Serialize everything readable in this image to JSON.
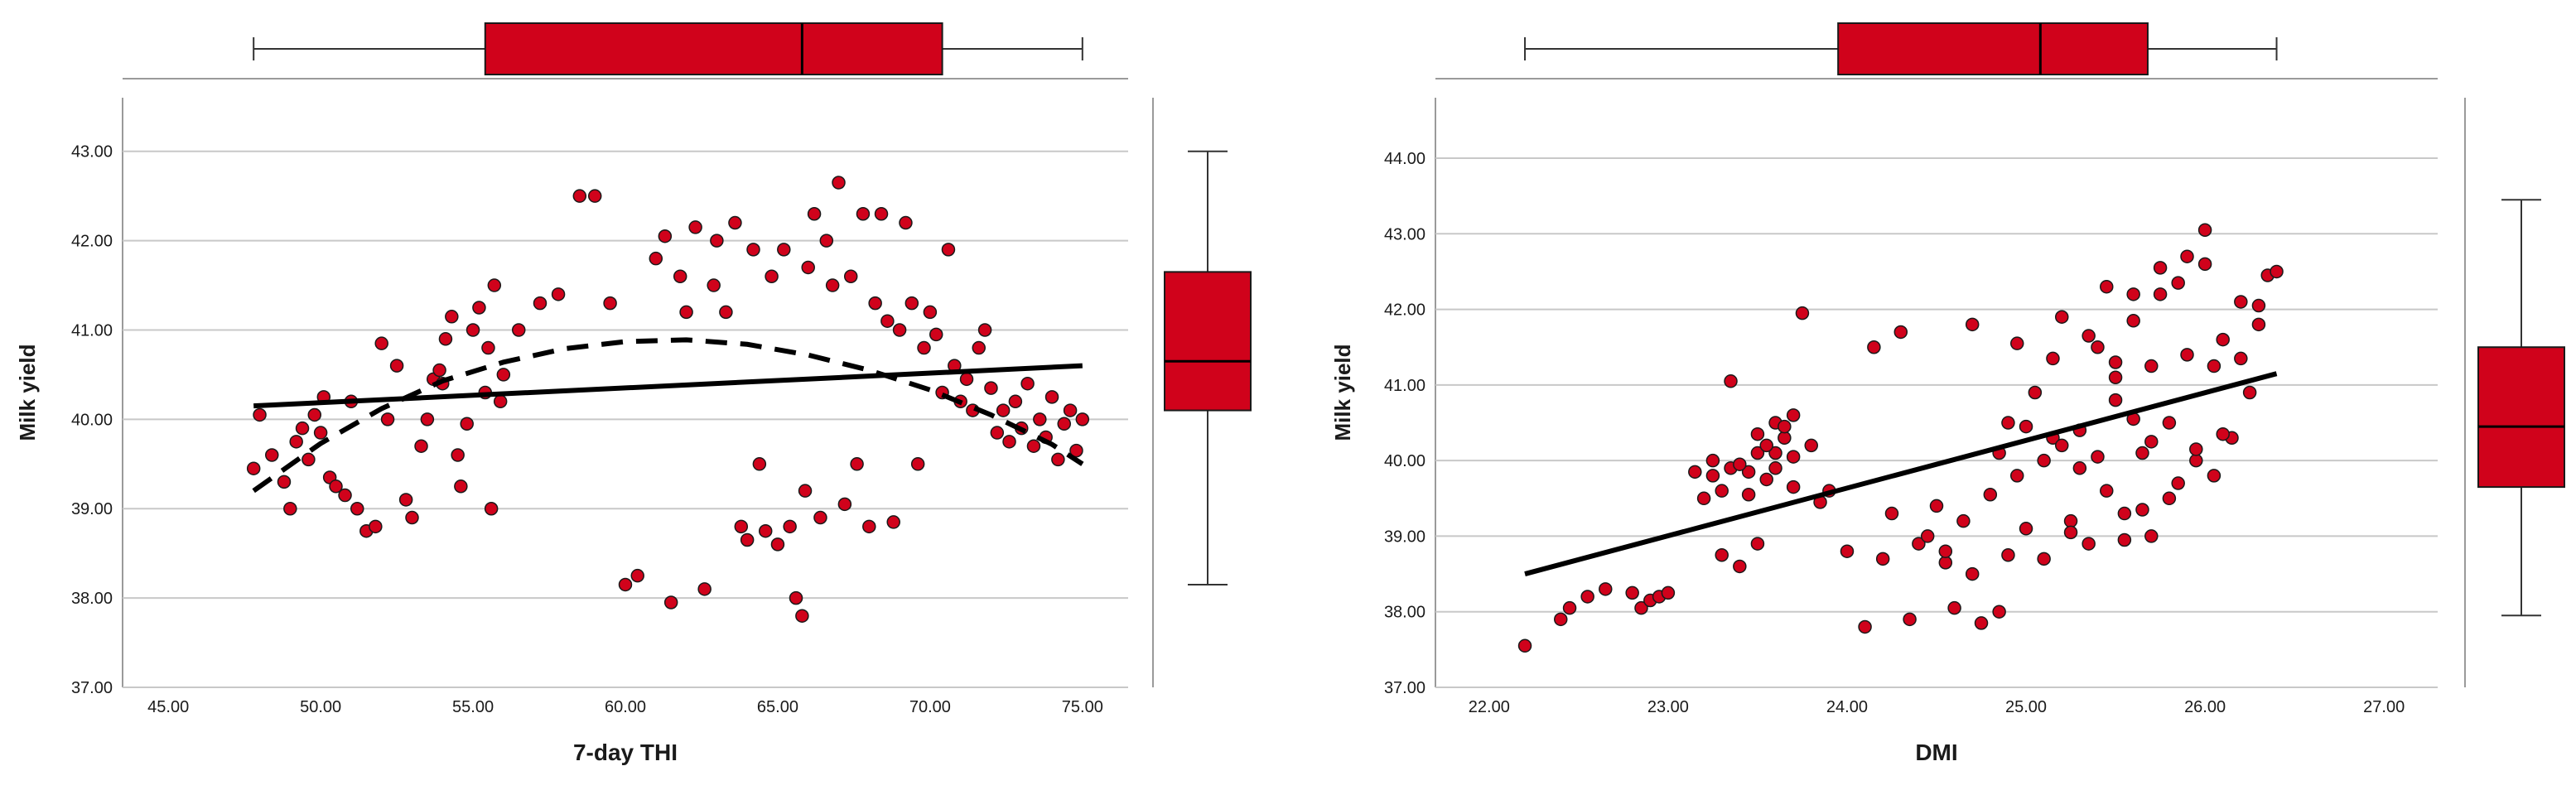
{
  "chart_data": [
    {
      "type": "scatter",
      "title": "",
      "xlabel": "7-day THI",
      "ylabel": "Milk yield",
      "xlim": [
        43.5,
        76.5
      ],
      "ylim": [
        37.0,
        43.6
      ],
      "x_ticks": [
        "45.00",
        "50.00",
        "55.00",
        "60.00",
        "65.00",
        "70.00",
        "75.00"
      ],
      "y_ticks": [
        "37.00",
        "38.00",
        "39.00",
        "40.00",
        "41.00",
        "42.00",
        "43.00"
      ],
      "grid": "horizontal",
      "colors": {
        "points": "#d0021b",
        "box": "#d0021b",
        "line": "#000000"
      },
      "linear_fit": {
        "x": [
          47.8,
          75.0
        ],
        "y": [
          40.15,
          40.6
        ]
      },
      "quadratic_fit": {
        "x": [
          47.8,
          50,
          52,
          54,
          56,
          58,
          60,
          62,
          64,
          66,
          68,
          70,
          72,
          74,
          75
        ],
        "y": [
          39.2,
          39.73,
          40.12,
          40.43,
          40.64,
          40.79,
          40.87,
          40.89,
          40.84,
          40.72,
          40.55,
          40.33,
          40.05,
          39.72,
          39.5
        ]
      },
      "boxplot_x": {
        "min": 47.8,
        "q1": 55.4,
        "median": 65.8,
        "q3": 70.4,
        "max": 75.0
      },
      "boxplot_y": {
        "min": 38.15,
        "q1": 40.1,
        "median": 40.65,
        "q3": 41.65,
        "max": 43.0
      },
      "points": [
        [
          47.8,
          39.45
        ],
        [
          48.0,
          40.05
        ],
        [
          48.4,
          39.6
        ],
        [
          48.8,
          39.3
        ],
        [
          49.0,
          39.0
        ],
        [
          49.2,
          39.75
        ],
        [
          49.4,
          39.9
        ],
        [
          49.6,
          39.55
        ],
        [
          49.8,
          40.05
        ],
        [
          50.0,
          39.85
        ],
        [
          50.1,
          40.25
        ],
        [
          50.3,
          39.35
        ],
        [
          50.5,
          39.25
        ],
        [
          50.8,
          39.15
        ],
        [
          51.0,
          40.2
        ],
        [
          51.2,
          39.0
        ],
        [
          51.5,
          38.75
        ],
        [
          51.8,
          38.8
        ],
        [
          52.0,
          40.85
        ],
        [
          52.2,
          40.0
        ],
        [
          52.5,
          40.6
        ],
        [
          52.8,
          39.1
        ],
        [
          53.0,
          38.9
        ],
        [
          53.3,
          39.7
        ],
        [
          53.5,
          40.0
        ],
        [
          53.7,
          40.45
        ],
        [
          53.9,
          40.55
        ],
        [
          54.0,
          40.4
        ],
        [
          54.1,
          40.9
        ],
        [
          54.3,
          41.15
        ],
        [
          54.5,
          39.6
        ],
        [
          54.6,
          39.25
        ],
        [
          54.8,
          39.95
        ],
        [
          55.0,
          41.0
        ],
        [
          55.2,
          41.25
        ],
        [
          55.4,
          40.3
        ],
        [
          55.5,
          40.8
        ],
        [
          55.6,
          39.0
        ],
        [
          55.7,
          41.5
        ],
        [
          55.9,
          40.2
        ],
        [
          56.0,
          40.5
        ],
        [
          56.5,
          41.0
        ],
        [
          57.2,
          41.3
        ],
        [
          57.8,
          41.4
        ],
        [
          58.5,
          42.5
        ],
        [
          59.0,
          42.5
        ],
        [
          59.5,
          41.3
        ],
        [
          60.0,
          38.15
        ],
        [
          60.4,
          38.25
        ],
        [
          61.0,
          41.8
        ],
        [
          61.3,
          42.05
        ],
        [
          61.5,
          37.95
        ],
        [
          61.8,
          41.6
        ],
        [
          62.0,
          41.2
        ],
        [
          62.3,
          42.15
        ],
        [
          62.6,
          38.1
        ],
        [
          62.9,
          41.5
        ],
        [
          63.0,
          42.0
        ],
        [
          63.3,
          41.2
        ],
        [
          63.6,
          42.2
        ],
        [
          63.8,
          38.8
        ],
        [
          64.0,
          38.65
        ],
        [
          64.2,
          41.9
        ],
        [
          64.4,
          39.5
        ],
        [
          64.6,
          38.75
        ],
        [
          64.8,
          41.6
        ],
        [
          65.0,
          38.6
        ],
        [
          65.2,
          41.9
        ],
        [
          65.4,
          38.8
        ],
        [
          65.6,
          38.0
        ],
        [
          65.8,
          37.8
        ],
        [
          65.9,
          39.2
        ],
        [
          66.0,
          41.7
        ],
        [
          66.2,
          42.3
        ],
        [
          66.4,
          38.9
        ],
        [
          66.6,
          42.0
        ],
        [
          66.8,
          41.5
        ],
        [
          67.0,
          42.65
        ],
        [
          67.2,
          39.05
        ],
        [
          67.4,
          41.6
        ],
        [
          67.6,
          39.5
        ],
        [
          67.8,
          42.3
        ],
        [
          68.0,
          38.8
        ],
        [
          68.2,
          41.3
        ],
        [
          68.4,
          42.3
        ],
        [
          68.6,
          41.1
        ],
        [
          68.8,
          38.85
        ],
        [
          69.0,
          41.0
        ],
        [
          69.2,
          42.2
        ],
        [
          69.4,
          41.3
        ],
        [
          69.6,
          39.5
        ],
        [
          69.8,
          40.8
        ],
        [
          70.0,
          41.2
        ],
        [
          70.2,
          40.95
        ],
        [
          70.4,
          40.3
        ],
        [
          70.6,
          41.9
        ],
        [
          70.8,
          40.6
        ],
        [
          71.0,
          40.2
        ],
        [
          71.2,
          40.45
        ],
        [
          71.4,
          40.1
        ],
        [
          71.6,
          40.8
        ],
        [
          71.8,
          41.0
        ],
        [
          72.0,
          40.35
        ],
        [
          72.2,
          39.85
        ],
        [
          72.4,
          40.1
        ],
        [
          72.6,
          39.75
        ],
        [
          72.8,
          40.2
        ],
        [
          73.0,
          39.9
        ],
        [
          73.2,
          40.4
        ],
        [
          73.4,
          39.7
        ],
        [
          73.6,
          40.0
        ],
        [
          73.8,
          39.8
        ],
        [
          74.0,
          40.25
        ],
        [
          74.2,
          39.55
        ],
        [
          74.4,
          39.95
        ],
        [
          74.6,
          40.1
        ],
        [
          74.8,
          39.65
        ],
        [
          75.0,
          40.0
        ]
      ]
    },
    {
      "type": "scatter",
      "title": "",
      "xlabel": "DMI",
      "ylabel": "Milk yield",
      "xlim": [
        21.7,
        27.3
      ],
      "ylim": [
        37.0,
        44.8
      ],
      "x_ticks": [
        "22.00",
        "23.00",
        "24.00",
        "25.00",
        "26.00",
        "27.00"
      ],
      "y_ticks": [
        "37.00",
        "38.00",
        "39.00",
        "40.00",
        "41.00",
        "42.00",
        "43.00",
        "44.00"
      ],
      "grid": "horizontal",
      "colors": {
        "points": "#d0021b",
        "box": "#d0021b",
        "line": "#000000"
      },
      "linear_fit": {
        "x": [
          22.2,
          26.4
        ],
        "y": [
          38.5,
          41.15
        ]
      },
      "boxplot_x": {
        "min": 22.2,
        "q1": 23.95,
        "median": 25.08,
        "q3": 25.68,
        "max": 26.4
      },
      "boxplot_y": {
        "min": 37.95,
        "q1": 39.65,
        "median": 40.45,
        "q3": 41.5,
        "max": 43.45
      },
      "points": [
        [
          22.2,
          37.55
        ],
        [
          22.4,
          37.9
        ],
        [
          22.45,
          38.05
        ],
        [
          22.55,
          38.2
        ],
        [
          22.65,
          38.3
        ],
        [
          22.8,
          38.25
        ],
        [
          22.85,
          38.05
        ],
        [
          22.9,
          38.15
        ],
        [
          22.95,
          38.2
        ],
        [
          23.0,
          38.25
        ],
        [
          23.2,
          39.5
        ],
        [
          23.25,
          39.8
        ],
        [
          23.3,
          39.6
        ],
        [
          23.35,
          39.9
        ],
        [
          23.4,
          38.6
        ],
        [
          23.45,
          39.85
        ],
        [
          23.5,
          40.1
        ],
        [
          23.55,
          39.75
        ],
        [
          23.6,
          40.5
        ],
        [
          23.65,
          40.3
        ],
        [
          23.7,
          39.65
        ],
        [
          23.75,
          41.95
        ],
        [
          23.8,
          40.2
        ],
        [
          23.85,
          39.45
        ],
        [
          23.9,
          39.6
        ],
        [
          24.0,
          38.8
        ],
        [
          24.1,
          37.8
        ],
        [
          24.15,
          41.5
        ],
        [
          24.2,
          38.7
        ],
        [
          24.3,
          41.7
        ],
        [
          24.35,
          37.9
        ],
        [
          24.4,
          38.9
        ],
        [
          24.5,
          39.4
        ],
        [
          24.55,
          38.65
        ],
        [
          24.6,
          38.05
        ],
        [
          24.7,
          41.8
        ],
        [
          24.75,
          37.85
        ],
        [
          24.8,
          39.55
        ],
        [
          24.85,
          38.0
        ],
        [
          24.9,
          40.5
        ],
        [
          24.95,
          41.55
        ],
        [
          25.0,
          39.1
        ],
        [
          25.05,
          40.9
        ],
        [
          25.1,
          38.7
        ],
        [
          25.15,
          40.3
        ],
        [
          25.2,
          41.9
        ],
        [
          25.25,
          39.2
        ],
        [
          25.3,
          40.4
        ],
        [
          25.35,
          38.9
        ],
        [
          25.4,
          41.5
        ],
        [
          25.45,
          39.6
        ],
        [
          25.5,
          40.8
        ],
        [
          25.55,
          39.3
        ],
        [
          25.6,
          41.85
        ],
        [
          25.65,
          40.1
        ],
        [
          25.7,
          39.0
        ],
        [
          25.75,
          42.2
        ],
        [
          25.8,
          40.5
        ],
        [
          25.85,
          39.7
        ],
        [
          25.9,
          41.4
        ],
        [
          25.95,
          40.0
        ],
        [
          26.0,
          42.6
        ],
        [
          26.05,
          39.8
        ],
        [
          26.1,
          41.6
        ],
        [
          26.15,
          40.3
        ],
        [
          26.2,
          42.1
        ],
        [
          26.25,
          40.9
        ],
        [
          26.3,
          41.8
        ],
        [
          26.35,
          42.45
        ],
        [
          26.4,
          42.5
        ],
        [
          26.0,
          43.05
        ],
        [
          25.9,
          42.7
        ],
        [
          26.1,
          40.35
        ],
        [
          25.45,
          42.3
        ],
        [
          25.5,
          41.1
        ],
        [
          25.3,
          39.9
        ],
        [
          25.6,
          40.55
        ],
        [
          25.1,
          40.0
        ],
        [
          24.95,
          39.8
        ],
        [
          25.2,
          40.2
        ],
        [
          25.4,
          40.05
        ],
        [
          25.7,
          40.25
        ],
        [
          25.95,
          40.15
        ],
        [
          25.8,
          39.5
        ],
        [
          25.65,
          39.35
        ],
        [
          25.55,
          38.95
        ],
        [
          25.25,
          39.05
        ],
        [
          24.9,
          38.75
        ],
        [
          24.7,
          38.5
        ],
        [
          24.55,
          38.8
        ],
        [
          23.5,
          40.35
        ],
        [
          23.6,
          40.1
        ],
        [
          23.45,
          39.55
        ],
        [
          23.7,
          40.05
        ],
        [
          23.35,
          41.05
        ],
        [
          23.55,
          40.2
        ],
        [
          23.65,
          40.45
        ],
        [
          23.4,
          39.95
        ],
        [
          23.25,
          40.0
        ],
        [
          23.15,
          39.85
        ],
        [
          23.3,
          38.75
        ],
        [
          23.5,
          38.9
        ],
        [
          23.6,
          39.9
        ],
        [
          23.7,
          40.6
        ],
        [
          24.25,
          39.3
        ],
        [
          24.45,
          39.0
        ],
        [
          24.65,
          39.2
        ],
        [
          24.85,
          40.1
        ],
        [
          25.0,
          40.45
        ],
        [
          25.15,
          41.35
        ],
        [
          25.35,
          41.65
        ],
        [
          25.5,
          41.3
        ],
        [
          25.7,
          41.25
        ],
        [
          25.85,
          42.35
        ],
        [
          26.05,
          41.25
        ],
        [
          26.2,
          41.35
        ],
        [
          26.3,
          42.05
        ],
        [
          25.75,
          42.55
        ],
        [
          25.6,
          42.2
        ]
      ]
    }
  ]
}
